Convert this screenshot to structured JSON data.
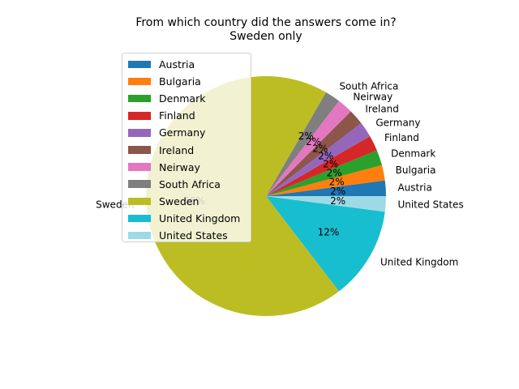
{
  "chart_data": {
    "type": "pie",
    "title": "From which country did the answers come in?",
    "subtitle": "Sweden only",
    "slices": [
      {
        "label": "Austria",
        "value": 2,
        "pct_label": "2%",
        "color": "#1f77b4"
      },
      {
        "label": "Bulgaria",
        "value": 2,
        "pct_label": "2%",
        "color": "#ff7f0e"
      },
      {
        "label": "Denmark",
        "value": 2,
        "pct_label": "2%",
        "color": "#2ca02c"
      },
      {
        "label": "Finland",
        "value": 2,
        "pct_label": "2%",
        "color": "#d62728"
      },
      {
        "label": "Germany",
        "value": 2,
        "pct_label": "2%",
        "color": "#9467bd"
      },
      {
        "label": "Ireland",
        "value": 2,
        "pct_label": "2%",
        "color": "#8c564b"
      },
      {
        "label": "Neirway",
        "value": 2,
        "pct_label": "2%",
        "color": "#e377c2"
      },
      {
        "label": "South Africa",
        "value": 2,
        "pct_label": "2%",
        "color": "#7f7f7f"
      },
      {
        "label": "Sweden",
        "value": 66,
        "pct_label": "66%",
        "color": "#bcbd22"
      },
      {
        "label": "United Kingdom",
        "value": 12,
        "pct_label": "12%",
        "color": "#17becf"
      },
      {
        "label": "United States",
        "value": 2,
        "pct_label": "2%",
        "color": "#9edae5"
      }
    ],
    "start_angle_deg": 0,
    "direction": "counterclockwise",
    "legend_position": "upper-left"
  }
}
